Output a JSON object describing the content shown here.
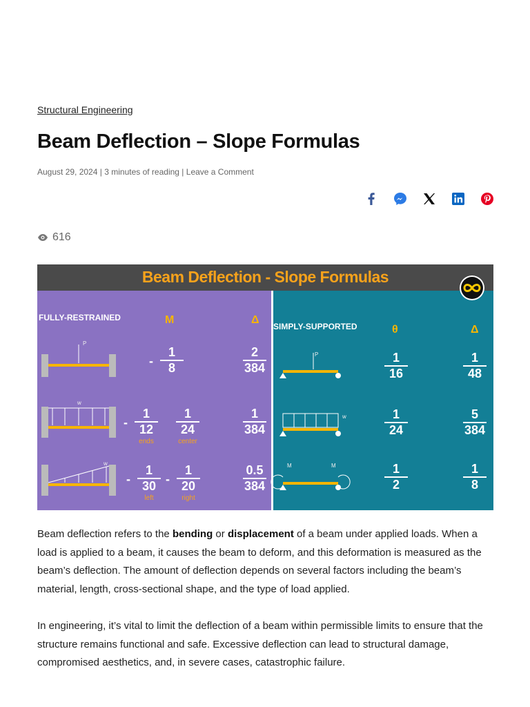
{
  "category": "Structural Engineering",
  "title": "Beam Deflection – Slope Formulas",
  "meta": {
    "date": "August 29, 2024",
    "separator": "|",
    "reading": "3 minutes of reading",
    "comment": "Leave a Comment"
  },
  "views": "616",
  "infographic": {
    "title": "Beam Deflection - Slope Formulas",
    "fixed": {
      "heading": "FULLY-RESTRAINED",
      "col_1": "M",
      "col_2": "Δ",
      "rows": [
        {
          "load": [
            "P"
          ],
          "m": [
            {
              "sign": "-",
              "num": "1",
              "den": "8"
            }
          ],
          "d": {
            "num": "2",
            "den": "384"
          }
        },
        {
          "load": [
            "w"
          ],
          "m": [
            {
              "sign": "-",
              "num": "1",
              "den": "12",
              "note": "ends"
            },
            {
              "num": "1",
              "den": "24",
              "note": "center"
            }
          ],
          "d": {
            "num": "1",
            "den": "384"
          }
        },
        {
          "load": [
            "w"
          ],
          "m": [
            {
              "sign": "-",
              "num": "1",
              "den": "30",
              "note": "left"
            },
            {
              "sign": "-",
              "num": "1",
              "den": "20",
              "note": "right"
            }
          ],
          "d": {
            "num": "0.5",
            "den": "384"
          }
        }
      ]
    },
    "simple": {
      "heading": "SIMPLY-SUPPORTED",
      "col_1": "θ",
      "col_2": "Δ",
      "rows": [
        {
          "load": [
            "P"
          ],
          "theta": {
            "num": "1",
            "den": "16"
          },
          "d": {
            "num": "1",
            "den": "48"
          }
        },
        {
          "load": [
            "w"
          ],
          "theta": {
            "num": "1",
            "den": "24"
          },
          "d": {
            "num": "5",
            "den": "384"
          }
        },
        {
          "load": [
            "M",
            "M"
          ],
          "theta": {
            "num": "1",
            "den": "2"
          },
          "d": {
            "num": "1",
            "den": "8"
          }
        }
      ]
    }
  },
  "paragraphs": [
    [
      {
        "text": "Beam deflection refers to the "
      },
      {
        "text": "bending",
        "bold": true
      },
      {
        "text": " or "
      },
      {
        "text": "displacement",
        "bold": true
      },
      {
        "text": " of a beam under applied loads. When a load is applied to a beam, it causes the beam to deform, and this deformation is measured as the beam’s deflection. The amount of deflection depends on several factors including the beam’s material, length, cross-sectional shape, and the type of load applied."
      }
    ],
    [
      {
        "text": "In engineering, it’s vital to limit the deflection of a beam within permissible limits to ensure that the structure remains functional and safe. Excessive deflection can lead to structural damage, compromised aesthetics, and, in severe cases, catastrophic failure."
      }
    ]
  ]
}
